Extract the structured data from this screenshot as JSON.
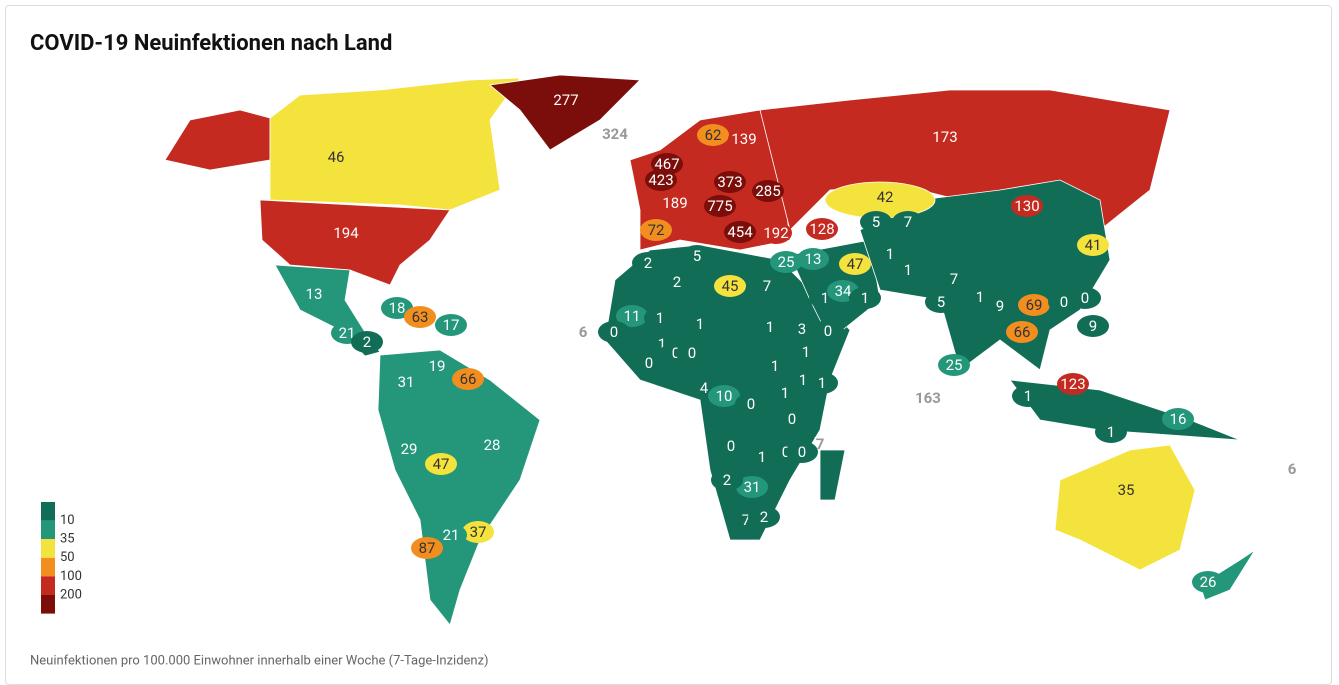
{
  "header": {
    "title": "COVID-19 Neuinfektionen nach Land"
  },
  "footnote": "Neuinfektionen pro 100.000 Einwohner innerhalb einer Woche (7-Tage-Inzidenz)",
  "legend": {
    "colors": [
      "#126d57",
      "#24977a",
      "#f5e33d",
      "#f28e1f",
      "#c42a20",
      "#7b0d0a"
    ],
    "breaks": [
      10,
      35,
      50,
      100,
      200
    ]
  },
  "regions": [
    {
      "value": 277,
      "color": "#7b0d0a"
    },
    {
      "value": 324,
      "color": "#7b0d0a"
    },
    {
      "value": 62,
      "color": "#f28e1f"
    },
    {
      "value": 139,
      "color": "#c42a20"
    },
    {
      "value": 173,
      "color": "#c42a20"
    },
    {
      "value": 46,
      "color": "#f5e33d"
    },
    {
      "value": 467,
      "color": "#7b0d0a"
    },
    {
      "value": 423,
      "color": "#7b0d0a"
    },
    {
      "value": 373,
      "color": "#7b0d0a"
    },
    {
      "value": 285,
      "color": "#7b0d0a"
    },
    {
      "value": 42,
      "color": "#f5e33d"
    },
    {
      "value": 189,
      "color": "#c42a20"
    },
    {
      "value": 775,
      "color": "#7b0d0a"
    },
    {
      "value": 130,
      "color": "#c42a20"
    },
    {
      "value": 194,
      "color": "#c42a20"
    },
    {
      "value": 72,
      "color": "#f28e1f"
    },
    {
      "value": 454,
      "color": "#7b0d0a"
    },
    {
      "value": 192,
      "color": "#c42a20"
    },
    {
      "value": 128,
      "color": "#c42a20"
    },
    {
      "value": 5,
      "color": "#126d57"
    },
    {
      "value": 7,
      "color": "#126d57"
    },
    {
      "value": 41,
      "color": "#f5e33d"
    },
    {
      "value": 25,
      "color": "#24977a"
    },
    {
      "value": 13,
      "color": "#24977a"
    },
    {
      "value": 47,
      "color": "#f5e33d"
    },
    {
      "value": 2,
      "color": "#126d57"
    },
    {
      "value": 5,
      "color": "#126d57"
    },
    {
      "value": 1,
      "color": "#126d57"
    },
    {
      "value": 1,
      "color": "#126d57"
    },
    {
      "value": 7,
      "color": "#126d57"
    },
    {
      "value": 2,
      "color": "#126d57"
    },
    {
      "value": 45,
      "color": "#f5e33d"
    },
    {
      "value": 7,
      "color": "#126d57"
    },
    {
      "value": 1,
      "color": "#126d57"
    },
    {
      "value": 34,
      "color": "#24977a"
    },
    {
      "value": 1,
      "color": "#126d57"
    },
    {
      "value": 5,
      "color": "#126d57"
    },
    {
      "value": 1,
      "color": "#126d57"
    },
    {
      "value": 9,
      "color": "#126d57"
    },
    {
      "value": 69,
      "color": "#f28e1f"
    },
    {
      "value": 0,
      "color": "#126d57"
    },
    {
      "value": 0,
      "color": "#126d57"
    },
    {
      "value": 13,
      "color": "#24977a"
    },
    {
      "value": 18,
      "color": "#24977a"
    },
    {
      "value": 63,
      "color": "#f28e1f"
    },
    {
      "value": 17,
      "color": "#24977a"
    },
    {
      "value": 6,
      "color": "#126d57"
    },
    {
      "value": 11,
      "color": "#24977a"
    },
    {
      "value": 0,
      "color": "#126d57"
    },
    {
      "value": 1,
      "color": "#126d57"
    },
    {
      "value": 1,
      "color": "#126d57"
    },
    {
      "value": 1,
      "color": "#126d57"
    },
    {
      "value": 3,
      "color": "#126d57"
    },
    {
      "value": 0,
      "color": "#126d57"
    },
    {
      "value": 9,
      "color": "#126d57"
    },
    {
      "value": 66,
      "color": "#f28e1f"
    },
    {
      "value": 21,
      "color": "#24977a"
    },
    {
      "value": 2,
      "color": "#126d57"
    },
    {
      "value": 1,
      "color": "#126d57"
    },
    {
      "value": 0,
      "color": "#126d57"
    },
    {
      "value": 0,
      "color": "#126d57"
    },
    {
      "value": 0,
      "color": "#126d57"
    },
    {
      "value": 1,
      "color": "#126d57"
    },
    {
      "value": 1,
      "color": "#126d57"
    },
    {
      "value": 25,
      "color": "#24977a"
    },
    {
      "value": 31,
      "color": "#24977a"
    },
    {
      "value": 19,
      "color": "#24977a"
    },
    {
      "value": 66,
      "color": "#f28e1f"
    },
    {
      "value": 1,
      "color": "#126d57"
    },
    {
      "value": 1,
      "color": "#126d57"
    },
    {
      "value": 1,
      "color": "#126d57"
    },
    {
      "value": 123,
      "color": "#c42a20"
    },
    {
      "value": 4,
      "color": "#126d57"
    },
    {
      "value": 10,
      "color": "#24977a"
    },
    {
      "value": 0,
      "color": "#126d57"
    },
    {
      "value": 1,
      "color": "#126d57"
    },
    {
      "value": 1,
      "color": "#126d57"
    },
    {
      "value": 163,
      "color": "#c42a20"
    },
    {
      "value": 0,
      "color": "#126d57"
    },
    {
      "value": 16,
      "color": "#24977a"
    },
    {
      "value": 1,
      "color": "#126d57"
    },
    {
      "value": 7,
      "color": "#126d57"
    },
    {
      "value": 28,
      "color": "#24977a"
    },
    {
      "value": 29,
      "color": "#24977a"
    },
    {
      "value": 47,
      "color": "#f5e33d"
    },
    {
      "value": 0,
      "color": "#126d57"
    },
    {
      "value": 1,
      "color": "#126d57"
    },
    {
      "value": 0,
      "color": "#126d57"
    },
    {
      "value": 0,
      "color": "#126d57"
    },
    {
      "value": 6,
      "color": "#126d57"
    },
    {
      "value": 31,
      "color": "#24977a"
    },
    {
      "value": 2,
      "color": "#126d57"
    },
    {
      "value": 35,
      "color": "#f5e33d"
    },
    {
      "value": 37,
      "color": "#f5e33d"
    },
    {
      "value": 21,
      "color": "#24977a"
    },
    {
      "value": 87,
      "color": "#f28e1f"
    },
    {
      "value": 7,
      "color": "#126d57"
    },
    {
      "value": 2,
      "color": "#126d57"
    },
    {
      "value": 26,
      "color": "#24977a"
    }
  ]
}
